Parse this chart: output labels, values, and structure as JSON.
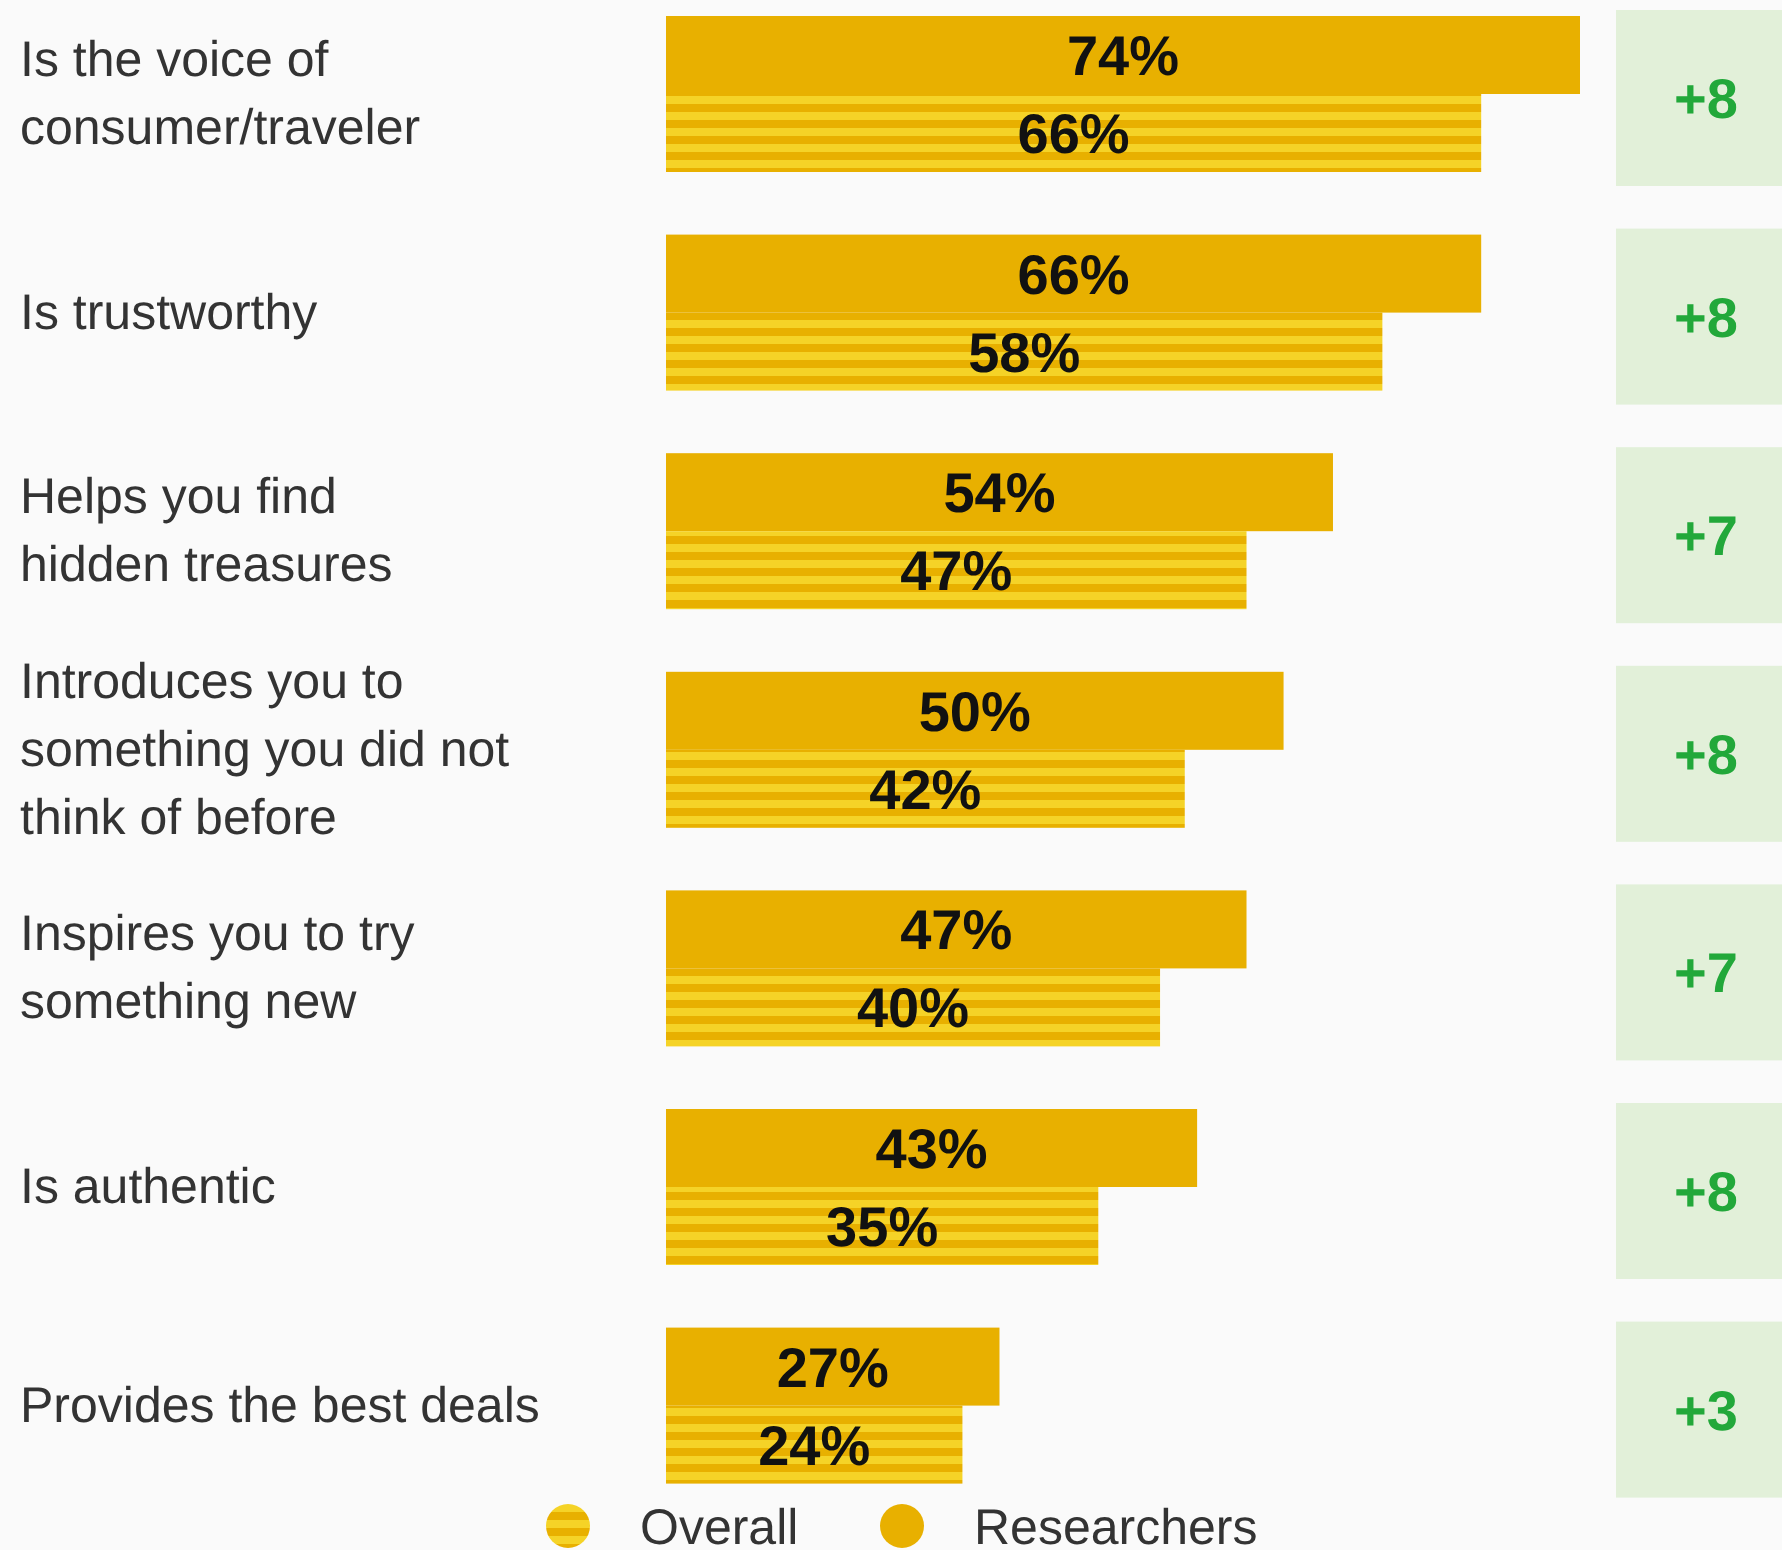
{
  "chart_data": {
    "type": "bar",
    "orientation": "horizontal",
    "legend": "bottom",
    "categories": [
      "Is the voice of\nconsumer/traveler",
      "Is trustworthy",
      "Helps you find\nhidden treasures",
      "Introduces you to\nsomething you did not\nthink of before",
      "Inspires you to try\nsomething new",
      "Is authentic",
      "Provides the best deals"
    ],
    "series": [
      {
        "name": "Researchers",
        "color": "#e8b000",
        "values": [
          74,
          66,
          54,
          50,
          47,
          43,
          27
        ],
        "value_labels": [
          "74%",
          "66%",
          "54%",
          "50%",
          "47%",
          "43%",
          "27%"
        ]
      },
      {
        "name": "Overall",
        "color": "#f5d327",
        "values": [
          66,
          58,
          47,
          42,
          40,
          35,
          24
        ],
        "value_labels": [
          "66%",
          "58%",
          "47%",
          "42%",
          "40%",
          "35%",
          "24%"
        ]
      }
    ],
    "annotations": [
      "+8",
      "+8",
      "+7",
      "+8",
      "+7",
      "+8",
      "+3"
    ]
  }
}
